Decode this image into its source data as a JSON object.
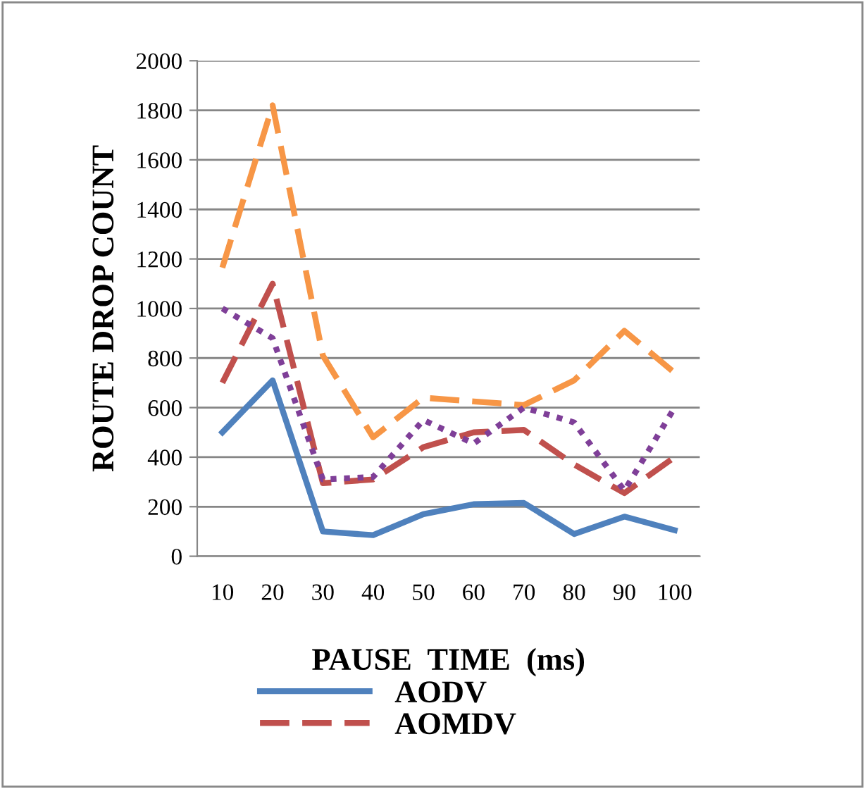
{
  "chart_data": {
    "type": "line",
    "xlabel": "PAUSE  TIME  (ms)",
    "ylabel": "ROUTE DROP COUNT",
    "categories": [
      "10",
      "20",
      "30",
      "40",
      "50",
      "60",
      "70",
      "80",
      "90",
      "100"
    ],
    "series": [
      {
        "name": "AODV",
        "color": "#4f81bd",
        "line_style": "solid",
        "values": [
          500,
          710,
          100,
          85,
          170,
          210,
          215,
          90,
          160,
          105
        ]
      },
      {
        "name": "AOMDV",
        "color": "#c0504d",
        "line_style": "dashed",
        "values": [
          700,
          1100,
          295,
          310,
          440,
          500,
          510,
          370,
          255,
          400
        ]
      },
      {
        "color": "#f79646",
        "line_style": "dashed",
        "values": [
          1165,
          1820,
          810,
          480,
          640,
          625,
          610,
          710,
          910,
          740
        ]
      },
      {
        "color": "#7f3f98",
        "line_style": "dotted",
        "values": [
          1000,
          880,
          310,
          320,
          550,
          455,
          600,
          540,
          265,
          600
        ]
      }
    ],
    "ylim": [
      0,
      2000
    ],
    "yticks": [
      0,
      200,
      400,
      600,
      800,
      1000,
      1200,
      1400,
      1600,
      1800,
      2000
    ],
    "grid": "y",
    "legend": "bottom",
    "marker": "none"
  }
}
